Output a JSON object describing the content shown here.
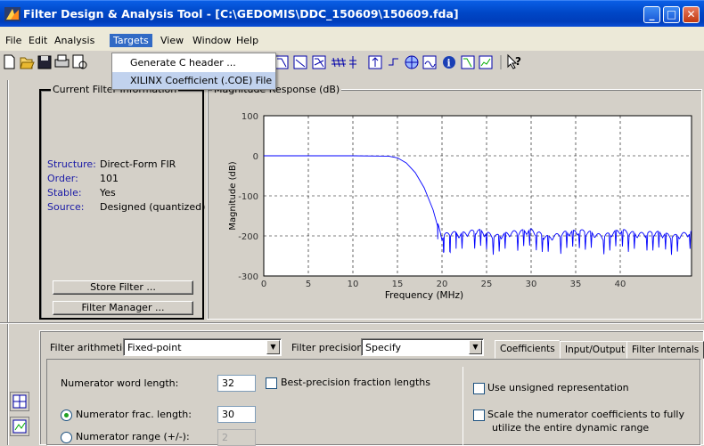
{
  "window": {
    "title": "Filter Design & Analysis Tool - [C:\\GEDOMIS\\DDC_150609\\150609.fda]",
    "minimize": "_",
    "maximize": "□",
    "close": "✕"
  },
  "menubar": {
    "items": [
      "File",
      "Edit",
      "Analysis",
      "Targets",
      "View",
      "Window",
      "Help"
    ],
    "active": "Targets"
  },
  "targets_menu": {
    "items": [
      "Generate C header ...",
      "XILINX Coefficient (.COE) File"
    ],
    "highlighted": "XILINX Coefficient (.COE) File"
  },
  "toolbar": {
    "icons": [
      "new-icon",
      "open-icon",
      "save-icon",
      "print-icon",
      "print-preview-icon",
      "magnitude-response-icon",
      "phase-response-icon",
      "mag-phase-icon",
      "group-delay-icon",
      "pole-zero-icon",
      "impulse-response-icon",
      "step-response-icon",
      "filter-coefficients-icon",
      "round-off-noise-icon",
      "filter-info-icon",
      "magnitude-estimate-icon",
      "noise-psd-icon",
      "whats-this-icon"
    ]
  },
  "current_filter": {
    "title": "Current Filter Information",
    "rows": [
      {
        "label": "Structure:",
        "value": "Direct-Form FIR"
      },
      {
        "label": "Order:",
        "value": "101"
      },
      {
        "label": "Stable:",
        "value": "Yes"
      },
      {
        "label": "Source:",
        "value": "Designed (quantized)"
      }
    ],
    "store_button": "Store Filter ...",
    "manager_button": "Filter Manager ..."
  },
  "chart_panel": {
    "title": "Magnitude Response (dB)"
  },
  "chart_data": {
    "type": "line",
    "title": "Magnitude Response (dB)",
    "xlabel": "Frequency (MHz)",
    "ylabel": "Magnitude (dB)",
    "xlim": [
      0,
      48
    ],
    "ylim": [
      -300,
      100
    ],
    "xticks": [
      0,
      5,
      10,
      15,
      20,
      25,
      30,
      35,
      40
    ],
    "yticks": [
      100,
      0,
      -100,
      -200,
      -300
    ],
    "grid": true,
    "color": "#0000ff",
    "series": [
      {
        "x": [
          0,
          5,
          10,
          14,
          15,
          16,
          17,
          18,
          19,
          19.5,
          20,
          21,
          22,
          24,
          26,
          28,
          30,
          32,
          34,
          36,
          38,
          40,
          42,
          44,
          46,
          48
        ],
        "values": [
          0,
          0,
          0,
          -1,
          -5,
          -18,
          -42,
          -80,
          -135,
          -175,
          -205,
          -195,
          -200,
          -190,
          -205,
          -195,
          -190,
          -208,
          -195,
          -192,
          -205,
          -190,
          -200,
          -195,
          -205,
          -195
        ]
      }
    ]
  },
  "quantization": {
    "arithmetic_label": "Filter arithmetic:",
    "arithmetic_value": "Fixed-point",
    "precision_label": "Filter precision:",
    "precision_value": "Specify",
    "tabs": [
      "Coefficients",
      "Input/Output",
      "Filter Internals"
    ],
    "active_tab": "Coefficients",
    "num_word_length_label": "Numerator word length:",
    "num_word_length": "32",
    "best_precision_label": "Best-precision fraction lengths",
    "num_frac_length_label": "Numerator frac. length:",
    "num_frac_length": "30",
    "num_range_label": "Numerator range (+/-):",
    "num_range": "2",
    "unsigned_label": "Use unsigned representation",
    "scale_label_1": "Scale the numerator coefficients to fully",
    "scale_label_2": "utilize the entire dynamic range"
  }
}
